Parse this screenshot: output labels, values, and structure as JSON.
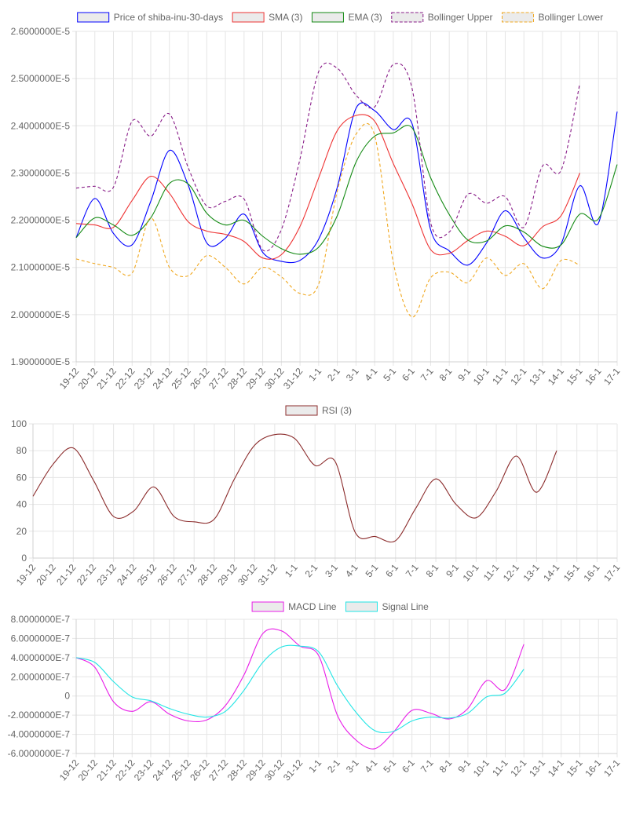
{
  "chart_data": [
    {
      "type": "line",
      "categories": [
        "19-12",
        "20-12",
        "21-12",
        "22-12",
        "23-12",
        "24-12",
        "25-12",
        "26-12",
        "27-12",
        "28-12",
        "29-12",
        "30-12",
        "31-12",
        "1-1",
        "2-1",
        "3-1",
        "4-1",
        "5-1",
        "6-1",
        "7-1",
        "8-1",
        "9-1",
        "10-1",
        "11-1",
        "12-1",
        "13-1",
        "14-1",
        "15-1",
        "16-1",
        "17-1"
      ],
      "y_ticks": [
        "1.9000000E-5",
        "2.0000000E-5",
        "2.1000000E-5",
        "2.2000000E-5",
        "2.3000000E-5",
        "2.4000000E-5",
        "2.5000000E-5",
        "2.6000000E-5"
      ],
      "ylim": [
        1.9e-05,
        2.6e-05
      ],
      "legend_position": "top",
      "series": [
        {
          "name": "Price of shiba-inu-30-days",
          "color": "#0000ff",
          "dashed": false,
          "values": [
            2.163e-05,
            2.246e-05,
            2.172e-05,
            2.148e-05,
            2.24e-05,
            2.348e-05,
            2.275e-05,
            2.152e-05,
            2.162e-05,
            2.213e-05,
            2.132e-05,
            2.113e-05,
            2.115e-05,
            2.16e-05,
            2.27e-05,
            2.437e-05,
            2.432e-05,
            2.392e-05,
            2.405e-05,
            2.18e-05,
            2.135e-05,
            2.105e-05,
            2.152e-05,
            2.22e-05,
            2.163e-05,
            2.12e-05,
            2.15e-05,
            2.273e-05,
            2.194e-05,
            2.43e-05
          ]
        },
        {
          "name": "SMA (3)",
          "color": "#ee3333",
          "dashed": false,
          "values": [
            2.193e-05,
            2.19e-05,
            2.185e-05,
            2.242e-05,
            2.293e-05,
            2.257e-05,
            2.197e-05,
            2.177e-05,
            2.17e-05,
            2.155e-05,
            2.12e-05,
            2.127e-05,
            2.187e-05,
            2.29e-05,
            2.39e-05,
            2.422e-05,
            2.41e-05,
            2.32e-05,
            2.235e-05,
            2.138e-05,
            2.13e-05,
            2.157e-05,
            2.177e-05,
            2.166e-05,
            2.146e-05,
            2.186e-05,
            2.21e-05,
            2.3e-05,
            null,
            null
          ]
        },
        {
          "name": "EMA (3)",
          "color": "#138a13",
          "dashed": false,
          "values": [
            2.163e-05,
            2.205e-05,
            2.19e-05,
            2.168e-05,
            2.205e-05,
            2.278e-05,
            2.277e-05,
            2.215e-05,
            2.19e-05,
            2.2e-05,
            2.166e-05,
            2.14e-05,
            2.128e-05,
            2.143e-05,
            2.21e-05,
            2.323e-05,
            2.378e-05,
            2.385e-05,
            2.396e-05,
            2.29e-05,
            2.212e-05,
            2.158e-05,
            2.156e-05,
            2.188e-05,
            2.175e-05,
            2.145e-05,
            2.148e-05,
            2.213e-05,
            2.203e-05,
            2.318e-05
          ]
        },
        {
          "name": "Bollinger Upper",
          "color": "#881c88",
          "dashed": true,
          "values": [
            2.268e-05,
            2.272e-05,
            2.27e-05,
            2.41e-05,
            2.378e-05,
            2.425e-05,
            2.312e-05,
            2.23e-05,
            2.24e-05,
            2.245e-05,
            2.137e-05,
            2.18e-05,
            2.33e-05,
            2.515e-05,
            2.522e-05,
            2.465e-05,
            2.44e-05,
            2.53e-05,
            2.48e-05,
            2.195e-05,
            2.175e-05,
            2.255e-05,
            2.236e-05,
            2.25e-05,
            2.185e-05,
            2.315e-05,
            2.306e-05,
            2.49e-05,
            null,
            null
          ]
        },
        {
          "name": "Bollinger Lower",
          "color": "#f0a820",
          "dashed": true,
          "values": [
            2.118e-05,
            2.108e-05,
            2.1e-05,
            2.088e-05,
            2.205e-05,
            2.1e-05,
            2.082e-05,
            2.125e-05,
            2.1e-05,
            2.065e-05,
            2.1e-05,
            2.08e-05,
            2.045e-05,
            2.065e-05,
            2.262e-05,
            2.382e-05,
            2.38e-05,
            2.11e-05,
            1.995e-05,
            2.078e-05,
            2.09e-05,
            2.068e-05,
            2.12e-05,
            2.083e-05,
            2.108e-05,
            2.055e-05,
            2.115e-05,
            2.105e-05,
            null,
            null
          ]
        }
      ]
    },
    {
      "type": "line",
      "categories": [
        "19-12",
        "20-12",
        "21-12",
        "22-12",
        "23-12",
        "24-12",
        "25-12",
        "26-12",
        "27-12",
        "28-12",
        "29-12",
        "30-12",
        "31-12",
        "1-1",
        "2-1",
        "3-1",
        "4-1",
        "5-1",
        "6-1",
        "7-1",
        "8-1",
        "9-1",
        "10-1",
        "11-1",
        "12-1",
        "13-1",
        "14-1",
        "15-1",
        "16-1",
        "17-1"
      ],
      "y_ticks": [
        "0",
        "20",
        "40",
        "60",
        "80",
        "100"
      ],
      "ylim": [
        0,
        100
      ],
      "legend_position": "top",
      "series": [
        {
          "name": "RSI (3)",
          "color": "#8b2b2b",
          "dashed": false,
          "values": [
            46,
            70,
            82,
            58,
            31,
            35,
            53,
            31,
            27,
            29,
            59,
            84,
            92,
            89,
            69,
            72,
            19,
            16,
            13,
            37,
            59,
            40,
            30,
            50,
            76,
            49,
            80,
            null,
            null,
            null
          ]
        }
      ]
    },
    {
      "type": "line",
      "categories": [
        "19-12",
        "20-12",
        "21-12",
        "22-12",
        "23-12",
        "24-12",
        "25-12",
        "26-12",
        "27-12",
        "28-12",
        "29-12",
        "30-12",
        "31-12",
        "1-1",
        "2-1",
        "3-1",
        "4-1",
        "5-1",
        "6-1",
        "7-1",
        "8-1",
        "9-1",
        "10-1",
        "11-1",
        "12-1",
        "13-1",
        "14-1",
        "15-1",
        "16-1",
        "17-1"
      ],
      "y_ticks": [
        "-6.0000000E-7",
        "-4.0000000E-7",
        "-2.0000000E-7",
        "0",
        "2.0000000E-7",
        "4.0000000E-7",
        "6.0000000E-7",
        "8.0000000E-7"
      ],
      "ylim": [
        -6e-07,
        8e-07
      ],
      "legend_position": "top",
      "series": [
        {
          "name": "MACD Line",
          "color": "#e81ee8",
          "dashed": false,
          "values": [
            4e-07,
            3e-07,
            -6e-08,
            -1.6e-07,
            -6e-08,
            -1.9e-07,
            -2.6e-07,
            -2.5e-07,
            -1e-07,
            2.2e-07,
            6.5e-07,
            6.8e-07,
            5.2e-07,
            4.2e-07,
            -2e-07,
            -4.6e-07,
            -5.5e-07,
            -3.8e-07,
            -1.5e-07,
            -1.8e-07,
            -2.4e-07,
            -1.3e-07,
            1.6e-07,
            7e-08,
            5.4e-07,
            null,
            null,
            null,
            null,
            null
          ]
        },
        {
          "name": "Signal Line",
          "color": "#22e5e5",
          "dashed": false,
          "values": [
            4e-07,
            3.5e-07,
            1.5e-07,
            -1e-08,
            -5e-08,
            -1.3e-07,
            -1.9e-07,
            -2.2e-07,
            -1.6e-07,
            6e-08,
            3.5e-07,
            5.1e-07,
            5.2e-07,
            4.6e-07,
            1.1e-07,
            -1.7e-07,
            -3.6e-07,
            -3.7e-07,
            -2.6e-07,
            -2.2e-07,
            -2.3e-07,
            -1.8e-07,
            -1e-08,
            3e-08,
            2.8e-07,
            null,
            null,
            null,
            null,
            null
          ]
        }
      ]
    }
  ]
}
